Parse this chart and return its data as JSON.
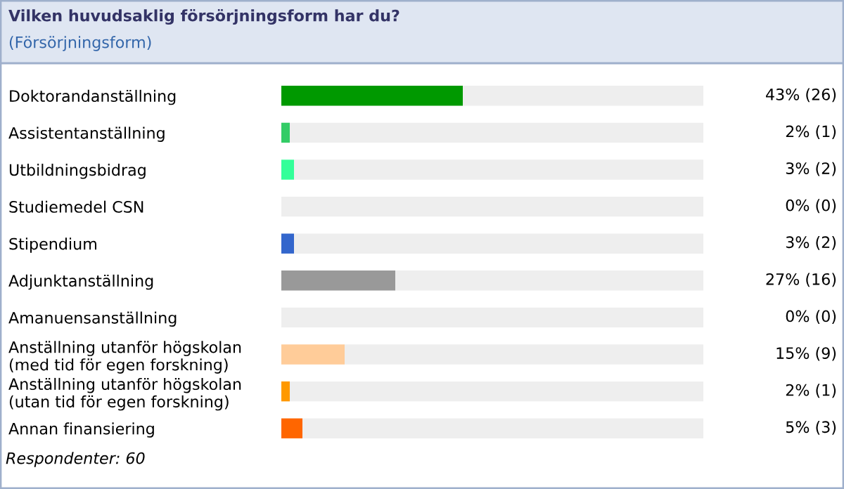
{
  "chart_data": {
    "type": "bar",
    "orientation": "horizontal",
    "stacked": true,
    "title": "Vilken huvudsaklig försörjningsform har du?",
    "subtitle": "(Försörjningsform)",
    "categories": [
      "Doktorandanställning",
      "Assistentanställning",
      "Utbildningsbidrag",
      "Studiemedel CSN",
      "Stipendium",
      "Adjunktanställning",
      "Amanuensanställning",
      "Anställning utanför högskolan\n(med tid för egen forskning)",
      "Anställning utanför högskolan\n(utan tid för egen forskning)",
      "Annan finansiering"
    ],
    "series": [
      {
        "colors": [
          "#009900",
          "#33cc66",
          "#33ff99",
          "#999999",
          "#3366cc",
          "#999999",
          "#999999",
          "#ffcc99",
          "#ff9900",
          "#ff6600"
        ],
        "values": [
          43,
          2,
          3,
          0,
          3,
          27,
          0,
          15,
          2,
          5
        ],
        "value_labels": [
          "43% (26)",
          "2% (1)",
          "3% (2)",
          "0% (0)",
          "3% (2)",
          "27% (16)",
          "0% (0)",
          "15% (9)",
          "2% (1)",
          "5% (3)"
        ]
      },
      {
        "color": "#eeeeee",
        "values": [
          57,
          98,
          97,
          100,
          97,
          73,
          100,
          85,
          98,
          95
        ]
      }
    ],
    "xlim": [
      0,
      100
    ],
    "tick_labels": "y",
    "annotations": [
      "Respondenter: 60"
    ]
  }
}
